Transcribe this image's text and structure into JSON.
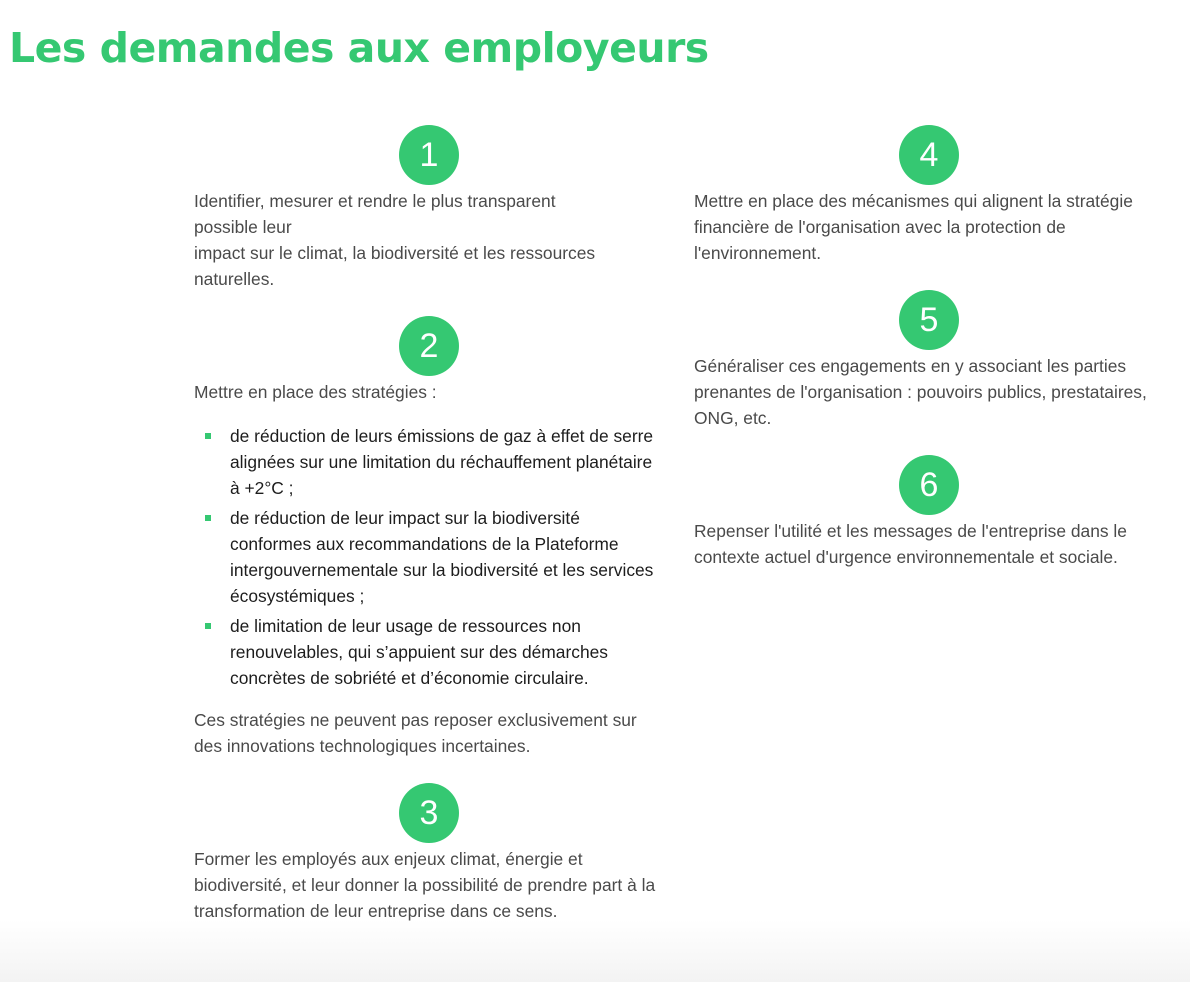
{
  "page": {
    "title": "Les demandes aux employeurs"
  },
  "theme": {
    "accent": "#35c872",
    "text": "#4a4a4a",
    "list_text": "#1d1d1d"
  },
  "steps": {
    "s1": {
      "number": "1",
      "lines": [
        "Identifier, mesurer et rendre le plus transparent",
        "possible leur",
        "impact sur le climat, la biodiversité et les ressources",
        "naturelles."
      ]
    },
    "s2": {
      "number": "2",
      "intro": "Mettre en place des stratégies :",
      "bullets": [
        "de réduction de leurs émissions de gaz à effet de serre alignées sur une limitation du réchauffement planétaire à +2°C ;",
        "de réduction de leur impact sur la biodiversité conformes aux recommandations de la Plateforme intergouvernementale sur la biodiversité et les services écosystémiques ;",
        "de limitation de leur usage de ressources non renouvelables, qui s’appuient sur des démarches concrètes de sobriété et d’économie circulaire."
      ],
      "note": "Ces stratégies ne peuvent pas reposer exclusivement sur des innovations technologiques incertaines."
    },
    "s3": {
      "number": "3",
      "text": "Former les employés aux enjeux climat, énergie et biodiversité, et leur donner la possibilité de prendre part à la transformation de leur entreprise dans ce sens."
    },
    "s4": {
      "number": "4",
      "text": "Mettre en place des mécanismes qui alignent la stratégie financière de l'organisation avec la protection de l'environnement."
    },
    "s5": {
      "number": "5",
      "text": "Généraliser ces engagements en y associant les parties prenantes de l'organisation : pouvoirs publics, prestataires, ONG, etc."
    },
    "s6": {
      "number": "6",
      "text": "Repenser l'utilité et les messages de l'entreprise dans le contexte actuel d'urgence environnementale et sociale."
    }
  }
}
